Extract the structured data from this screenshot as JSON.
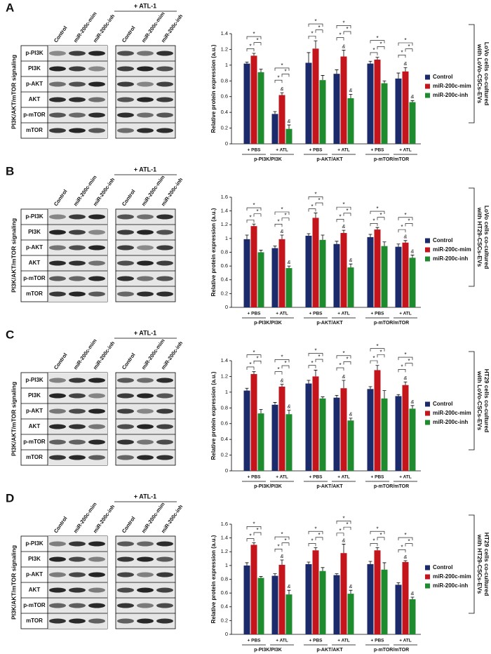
{
  "panels": [
    {
      "letter": "A",
      "treatment": "+ ATL-1",
      "lanes": [
        "Control",
        "miR-200c-mim",
        "miR-200c-inh"
      ],
      "pathway": "PI3K/AKT/mTOR signaling",
      "blots": [
        "p-PI3K",
        "PI3K",
        "p-AKT",
        "AKT",
        "p-mTOR",
        "mTOR"
      ],
      "condition": [
        "LoVo cells co-cultured",
        "with LoVo-CSCs-EVs"
      ]
    },
    {
      "letter": "B",
      "treatment": "+ ATL-1",
      "lanes": [
        "Control",
        "miR-200c-mim",
        "miR-200c-inh"
      ],
      "pathway": "PI3K/AKT/mTOR signaling",
      "blots": [
        "p-PI3K",
        "PI3K",
        "p-AKT",
        "AKT",
        "p-mTOR",
        "mTOR"
      ],
      "condition": [
        "LoVo cells co-cultured",
        "with HT29-CSCs-EVs"
      ]
    },
    {
      "letter": "C",
      "treatment": "+ ATL-1",
      "lanes": [
        "Control",
        "miR-200c-mim",
        "miR-200c-inh"
      ],
      "pathway": "PI3K/AKT/mTOR signaling",
      "blots": [
        "p-PI3K",
        "PI3K",
        "p-AKT",
        "AKT",
        "p-mTOR",
        "mTOR"
      ],
      "condition": [
        "HT29 cells co-cultured",
        "with LoVo-CSCs-EVs"
      ]
    },
    {
      "letter": "D",
      "treatment": "+ ATL-1",
      "lanes": [
        "Control",
        "miR-200c-mim",
        "miR-200c-inh"
      ],
      "pathway": "PI3K/AKT/mTOR signaling",
      "blots": [
        "p-PI3K",
        "PI3K",
        "p-AKT",
        "AKT",
        "p-mTOR",
        "mTOR"
      ],
      "condition": [
        "HT29 cells co-cultured",
        "with HT29-CSCs-EVs"
      ]
    }
  ],
  "chart_data": [
    {
      "type": "bar",
      "ylabel": "Relative protein expression (a.u.)",
      "categories": [
        "+ PBS",
        "+ ATL",
        "+ PBS",
        "+ ATL",
        "+ PBS",
        "+ ATL"
      ],
      "groups": [
        "p-PI3K/PI3K",
        "p-AKT/AKT",
        "p-mTOR/mTOR"
      ],
      "series": [
        {
          "name": "Control",
          "color": "#1b2a6b",
          "values": [
            1.02,
            0.38,
            1.03,
            0.89,
            1.02,
            0.83
          ],
          "errors": [
            0.02,
            0.03,
            0.13,
            0.05,
            0.03,
            0.07
          ]
        },
        {
          "name": "miR-200c-mim",
          "color": "#c4151c",
          "values": [
            1.12,
            0.62,
            1.21,
            1.11,
            1.07,
            0.92
          ],
          "errors": [
            0.03,
            0.03,
            0.1,
            0.08,
            0.03,
            0.05
          ]
        },
        {
          "name": "miR-200c-inh",
          "color": "#1e8c2e",
          "values": [
            0.91,
            0.19,
            0.81,
            0.58,
            0.77,
            0.53
          ],
          "errors": [
            0.04,
            0.05,
            0.06,
            0.05,
            0.03,
            0.02
          ]
        }
      ],
      "ylim": [
        0,
        1.4
      ],
      "yticks": [
        0,
        0.2,
        0.4,
        0.6,
        0.8,
        1,
        1.2,
        1.4
      ],
      "sig_marker": "*",
      "ctrl_marker": "&",
      "legend": "right"
    },
    {
      "type": "bar",
      "ylabel": "Relative protein expression (a.u.)",
      "categories": [
        "+ PBS",
        "+ ATL",
        "+ PBS",
        "+ ATL",
        "+ PBS",
        "+ ATL"
      ],
      "groups": [
        "p-PI3K/PI3K",
        "p-AKT/AKT",
        "p-mTOR/mTOR"
      ],
      "series": [
        {
          "name": "Control",
          "color": "#1b2a6b",
          "values": [
            0.99,
            0.86,
            1.04,
            0.92,
            1.02,
            0.88
          ],
          "errors": [
            0.06,
            0.03,
            0.03,
            0.04,
            0.04,
            0.04
          ]
        },
        {
          "name": "miR-200c-mim",
          "color": "#c4151c",
          "values": [
            1.18,
            0.99,
            1.3,
            1.08,
            1.13,
            0.94
          ],
          "errors": [
            0.03,
            0.06,
            0.07,
            0.04,
            0.03,
            0.03
          ]
        },
        {
          "name": "miR-200c-inh",
          "color": "#1e8c2e",
          "values": [
            0.8,
            0.57,
            0.98,
            0.58,
            0.89,
            0.72
          ],
          "errors": [
            0.03,
            0.03,
            0.07,
            0.05,
            0.06,
            0.04
          ]
        }
      ],
      "ylim": [
        0,
        1.6
      ],
      "yticks": [
        0,
        0.2,
        0.4,
        0.6,
        0.8,
        1,
        1.2,
        1.4,
        1.6
      ],
      "sig_marker": "*",
      "ctrl_marker": "&",
      "legend": "right"
    },
    {
      "type": "bar",
      "ylabel": "Relative protein expression (a.u.)",
      "categories": [
        "+ PBS",
        "+ ATL",
        "+ PBS",
        "+ ATL",
        "+ PBS",
        "+ ATL"
      ],
      "groups": [
        "p-PI3K/PI3K",
        "p-AKT/AKT",
        "p-mTOR/mTOR"
      ],
      "series": [
        {
          "name": "Control",
          "color": "#1b2a6b",
          "values": [
            1.02,
            0.84,
            1.11,
            0.93,
            1.04,
            0.95
          ],
          "errors": [
            0.03,
            0.03,
            0.04,
            0.03,
            0.03,
            0.02
          ]
        },
        {
          "name": "miR-200c-mim",
          "color": "#c4151c",
          "values": [
            1.23,
            1.07,
            1.2,
            1.05,
            1.28,
            1.09
          ],
          "errors": [
            0.03,
            0.03,
            0.08,
            0.1,
            0.06,
            0.04
          ]
        },
        {
          "name": "miR-200c-inh",
          "color": "#1e8c2e",
          "values": [
            0.73,
            0.72,
            0.92,
            0.64,
            0.92,
            0.79
          ],
          "errors": [
            0.05,
            0.05,
            0.02,
            0.03,
            0.1,
            0.04
          ]
        }
      ],
      "ylim": [
        0,
        1.4
      ],
      "yticks": [
        0,
        0.2,
        0.4,
        0.6,
        0.8,
        1,
        1.2,
        1.4
      ],
      "sig_marker": "*",
      "ctrl_marker": "&",
      "legend": "right"
    },
    {
      "type": "bar",
      "ylabel": "Relative protein expression (a.u.)",
      "categories": [
        "+ PBS",
        "+ ATL",
        "+ PBS",
        "+ ATL",
        "+ PBS",
        "+ ATL"
      ],
      "groups": [
        "p-PI3K/PI3K",
        "p-AKT/AKT",
        "p-mTOR/mTOR"
      ],
      "series": [
        {
          "name": "Control",
          "color": "#1b2a6b",
          "values": [
            1.0,
            0.85,
            1.02,
            0.86,
            1.02,
            0.72
          ],
          "errors": [
            0.04,
            0.03,
            0.03,
            0.02,
            0.04,
            0.03
          ]
        },
        {
          "name": "miR-200c-mim",
          "color": "#c4151c",
          "values": [
            1.3,
            1.01,
            1.22,
            1.18,
            1.22,
            1.05
          ],
          "errors": [
            0.03,
            0.07,
            0.04,
            0.13,
            0.04,
            0.02
          ]
        },
        {
          "name": "miR-200c-inh",
          "color": "#1e8c2e",
          "values": [
            0.82,
            0.58,
            0.92,
            0.59,
            0.94,
            0.51
          ],
          "errors": [
            0.02,
            0.06,
            0.05,
            0.05,
            0.1,
            0.03
          ]
        }
      ],
      "ylim": [
        0,
        1.6
      ],
      "yticks": [
        0,
        0.2,
        0.4,
        0.6,
        0.8,
        1,
        1.2,
        1.4,
        1.6
      ],
      "sig_marker": "*",
      "ctrl_marker": "&",
      "legend": "right"
    }
  ]
}
